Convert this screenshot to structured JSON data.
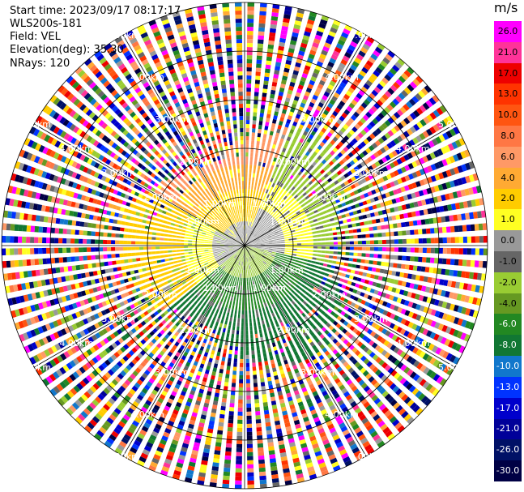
{
  "info": {
    "start_time": "Start time: 2023/09/17 08:17:17",
    "instrument": "WLS200s-181",
    "field": "Field: VEL",
    "elevation": "Elevation(deg): 35.30",
    "nrays": "NRays: 120"
  },
  "chart_data": {
    "type": "ppi-radial-velocity",
    "rings_km": [
      1.0,
      2.0,
      3.0,
      4.0,
      5.0
    ],
    "ring_labels": [
      "1.00km",
      "2.00km",
      "3.00km",
      "4.00km",
      "5.00km"
    ],
    "max_range_km": 5.0,
    "n_rays": 120,
    "spoke_count": 6,
    "colorbar": {
      "unit": "m/s",
      "ticks": [
        "26.0",
        "21.0",
        "17.0",
        "13.0",
        "10.0",
        "8.0",
        "6.0",
        "4.0",
        "2.0",
        "1.0",
        "0.0",
        "-1.0",
        "-2.0",
        "-4.0",
        "-6.0",
        "-8.0",
        "-10.0",
        "-13.0",
        "-17.0",
        "-21.0",
        "-26.0",
        "-30.0"
      ],
      "colors": [
        "#ff00ff",
        "#ff3399",
        "#ee0000",
        "#ff3300",
        "#ff5511",
        "#ff7744",
        "#ff9966",
        "#ffaa33",
        "#ffcc00",
        "#ffff22",
        "#999999",
        "#666666",
        "#99cc33",
        "#669922",
        "#228822",
        "#117733",
        "#1177cc",
        "#0033ff",
        "#0000cc",
        "#000099",
        "#001166",
        "#000044"
      ]
    }
  }
}
